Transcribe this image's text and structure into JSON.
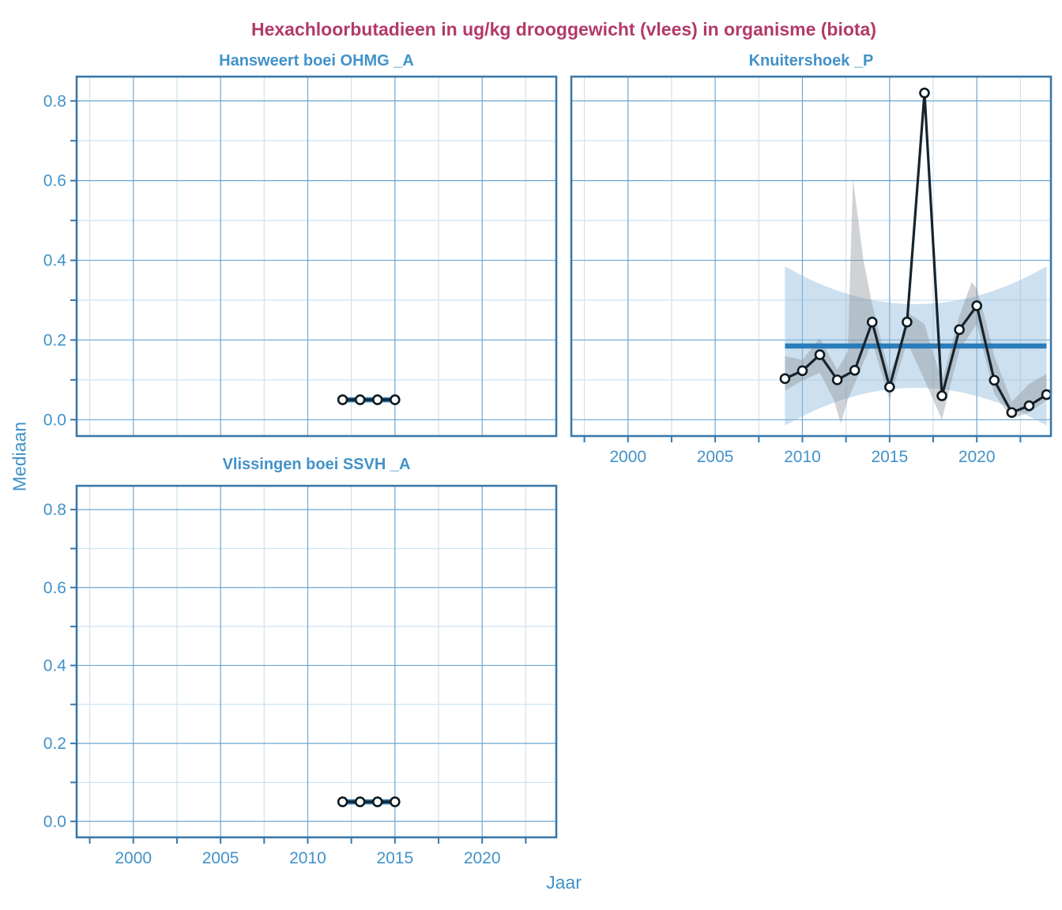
{
  "title": "Hexachloorbutadieen in ug/kg drooggewicht (vlees) in organisme (biota)",
  "axis": {
    "x_label": "Jaar",
    "y_label": "Mediaan"
  },
  "colors": {
    "title_text": "#b23a68",
    "axis_text": "#4292c8",
    "panel_border": "#3a78a8",
    "grid_major": "#6ea6d0",
    "grid_minor": "#cfe2f0",
    "tick_mark": "#3a78a8",
    "trend_line": "#2b7cba",
    "data_line": "#17242d",
    "marker_fill": "#ffffff",
    "marker_stroke": "#0d1a21",
    "ci_band": "rgba(144,186,220,0.45)",
    "smooth_band": "rgba(138,144,150,0.40)"
  },
  "chart_data": {
    "type": "line",
    "title": "Hexachloorbutadieen in ug/kg drooggewicht (vlees) in organisme (biota)",
    "xlabel": "Jaar",
    "ylabel": "Mediaan",
    "xlim": [
      1996.75,
      2024.25
    ],
    "ylim": [
      -0.041,
      0.861
    ],
    "x_ticks": [
      2000,
      2005,
      2010,
      2015,
      2020
    ],
    "x_minor_step": 2.5,
    "y_ticks": [
      0.0,
      0.2,
      0.4,
      0.6,
      0.8
    ],
    "y_minor_step": 0.1,
    "grid": true,
    "legend": "none",
    "panels": [
      {
        "name": "Hansweert boei OHMG _A",
        "x": [
          2012,
          2013,
          2014,
          2015
        ],
        "values": [
          0.05,
          0.05,
          0.05,
          0.05
        ],
        "trend": {
          "x": [
            2012,
            2015
          ],
          "y": [
            0.05,
            0.05
          ]
        }
      },
      {
        "name": "Knuitershoek _P",
        "x": [
          2009,
          2010,
          2011,
          2012,
          2013,
          2014,
          2015,
          2016,
          2017,
          2018,
          2019,
          2020,
          2021,
          2022,
          2023,
          2024
        ],
        "values": [
          0.103,
          0.123,
          0.163,
          0.1,
          0.124,
          0.245,
          0.082,
          0.245,
          0.82,
          0.06,
          0.226,
          0.286,
          0.099,
          0.018,
          0.035,
          0.063
        ],
        "trend": {
          "x": [
            2009,
            2024
          ],
          "y": [
            0.185,
            0.185
          ]
        },
        "ci_band": {
          "center": 0.185,
          "x_range": [
            2009,
            2024
          ],
          "x_center": 2016.5,
          "x_half": 7.5,
          "halfwidth_min": 0.105,
          "halfwidth_max": 0.2
        },
        "smooth_band": {
          "upper": [
            [
              2009,
              0.16
            ],
            [
              2010,
              0.15
            ],
            [
              2011,
              0.205
            ],
            [
              2012,
              0.125
            ],
            [
              2012.6,
              0.17
            ],
            [
              2012.9,
              0.605
            ],
            [
              2013.5,
              0.4
            ],
            [
              2014,
              0.29
            ],
            [
              2014.5,
              0.2
            ],
            [
              2015,
              0.115
            ],
            [
              2015.5,
              0.17
            ],
            [
              2016,
              0.27
            ],
            [
              2017,
              0.24
            ],
            [
              2018,
              0.095
            ],
            [
              2019,
              0.26
            ],
            [
              2019.7,
              0.345
            ],
            [
              2020,
              0.33
            ],
            [
              2020.5,
              0.25
            ],
            [
              2021,
              0.16
            ],
            [
              2022,
              0.045
            ],
            [
              2023,
              0.09
            ],
            [
              2024,
              0.115
            ]
          ],
          "lower": [
            [
              2009,
              0.073
            ],
            [
              2010,
              0.098
            ],
            [
              2011,
              0.118
            ],
            [
              2011.8,
              0.05
            ],
            [
              2012.2,
              -0.01
            ],
            [
              2012.6,
              0.05
            ],
            [
              2013,
              0.09
            ],
            [
              2014,
              0.195
            ],
            [
              2015,
              0.05
            ],
            [
              2016,
              0.195
            ],
            [
              2017,
              0.1
            ],
            [
              2018,
              0.0
            ],
            [
              2019,
              0.175
            ],
            [
              2020,
              0.24
            ],
            [
              2021,
              0.065
            ],
            [
              2022,
              0.003
            ],
            [
              2023,
              0.018
            ],
            [
              2024,
              0.048
            ]
          ]
        }
      },
      {
        "name": "Vlissingen boei SSVH _A",
        "x": [
          2012,
          2013,
          2014,
          2015
        ],
        "values": [
          0.05,
          0.05,
          0.05,
          0.05
        ],
        "trend": {
          "x": [
            2012,
            2015
          ],
          "y": [
            0.05,
            0.05
          ]
        }
      }
    ]
  }
}
